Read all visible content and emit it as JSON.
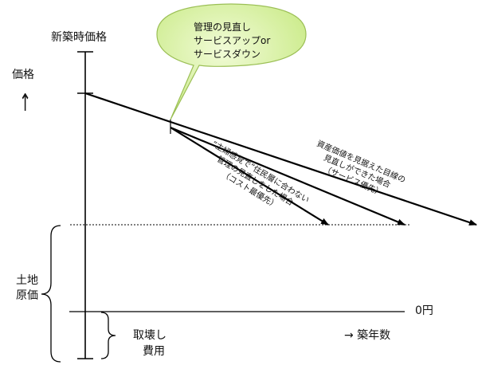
{
  "bubble": {
    "lines": [
      "管理の見直し",
      "サービスアップor",
      "サービスダウン"
    ]
  },
  "labels": {
    "new_build_price": "新築時価格",
    "price": "価格",
    "price_arrow": "↑",
    "land_cost_line1": "土地",
    "land_cost_line2": "原価",
    "demolition_line1": "取壊し",
    "demolition_line2": "費用",
    "zero_yen": "0円",
    "building_age": "→ 築年数"
  },
  "annotations": {
    "cost_priority": [
      "“主婦感覚で”住民層に合わない",
      "管理の見直しをした場合",
      "（コスト最優先）"
    ],
    "service_priority": [
      "資産価値を見据えた目線の",
      "見直しができた場合",
      "（サービス優先）"
    ]
  },
  "colors": {
    "bubble_fill_inner": "#f1fbd7",
    "bubble_fill_outer": "#c9ea86",
    "bubble_stroke": "#9bbf55",
    "line": "#000000"
  }
}
